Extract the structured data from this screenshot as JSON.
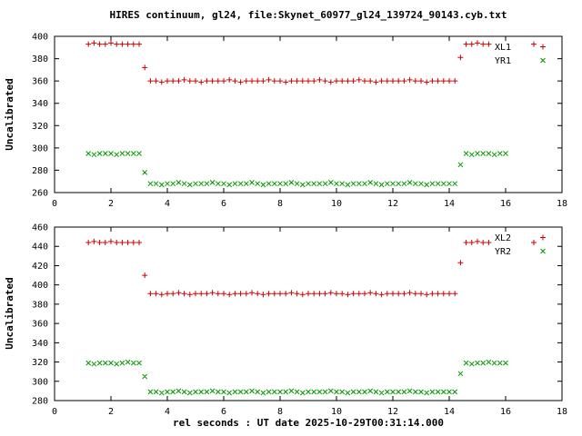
{
  "chart_data": [
    {
      "type": "scatter",
      "title": "HIRES continuum, gl24, file:Skynet_60977_gl24_139724_90143.cyb.txt",
      "ylabel": "Uncalibrated",
      "xlabel": "",
      "xlim": [
        0,
        18
      ],
      "ylim": [
        260,
        400
      ],
      "xticks": [
        0,
        2,
        4,
        6,
        8,
        10,
        12,
        14,
        16,
        18
      ],
      "yticks": [
        260,
        280,
        300,
        320,
        340,
        360,
        380,
        400
      ],
      "grid": false,
      "legend_position": "top-right",
      "series": [
        {
          "name": "XL1",
          "marker": "plus",
          "color": "#cc0000",
          "x": [
            1.2,
            1.4,
            1.6,
            1.8,
            2.0,
            2.2,
            2.4,
            2.6,
            2.8,
            3.0,
            3.2,
            3.4,
            3.6,
            3.8,
            4.0,
            4.2,
            4.4,
            4.6,
            4.8,
            5.0,
            5.2,
            5.4,
            5.6,
            5.8,
            6.0,
            6.2,
            6.4,
            6.6,
            6.8,
            7.0,
            7.2,
            7.4,
            7.6,
            7.8,
            8.0,
            8.2,
            8.4,
            8.6,
            8.8,
            9.0,
            9.2,
            9.4,
            9.6,
            9.8,
            10.0,
            10.2,
            10.4,
            10.6,
            10.8,
            11.0,
            11.2,
            11.4,
            11.6,
            11.8,
            12.0,
            12.2,
            12.4,
            12.6,
            12.8,
            13.0,
            13.2,
            13.4,
            13.6,
            13.8,
            14.0,
            14.2,
            14.4,
            14.6,
            14.8,
            15.0,
            15.2,
            15.4,
            17.0
          ],
          "y": [
            393,
            394,
            393,
            393,
            394,
            393,
            393,
            393,
            393,
            393,
            372,
            360,
            360,
            359,
            360,
            360,
            360,
            361,
            360,
            360,
            359,
            360,
            360,
            360,
            360,
            361,
            360,
            359,
            360,
            360,
            360,
            360,
            361,
            360,
            360,
            359,
            360,
            360,
            360,
            360,
            360,
            361,
            360,
            359,
            360,
            360,
            360,
            360,
            361,
            360,
            360,
            359,
            360,
            360,
            360,
            360,
            360,
            361,
            360,
            360,
            359,
            360,
            360,
            360,
            360,
            360,
            381,
            393,
            393,
            394,
            393,
            393,
            393
          ]
        },
        {
          "name": "YR1",
          "marker": "cross",
          "color": "#009900",
          "x": [
            1.2,
            1.4,
            1.6,
            1.8,
            2.0,
            2.2,
            2.4,
            2.6,
            2.8,
            3.0,
            3.2,
            3.4,
            3.6,
            3.8,
            4.0,
            4.2,
            4.4,
            4.6,
            4.8,
            5.0,
            5.2,
            5.4,
            5.6,
            5.8,
            6.0,
            6.2,
            6.4,
            6.6,
            6.8,
            7.0,
            7.2,
            7.4,
            7.6,
            7.8,
            8.0,
            8.2,
            8.4,
            8.6,
            8.8,
            9.0,
            9.2,
            9.4,
            9.6,
            9.8,
            10.0,
            10.2,
            10.4,
            10.6,
            10.8,
            11.0,
            11.2,
            11.4,
            11.6,
            11.8,
            12.0,
            12.2,
            12.4,
            12.6,
            12.8,
            13.0,
            13.2,
            13.4,
            13.6,
            13.8,
            14.0,
            14.2,
            14.4,
            14.6,
            14.8,
            15.0,
            15.2,
            15.4,
            15.6,
            15.8,
            16.0
          ],
          "y": [
            295,
            294,
            295,
            295,
            295,
            294,
            295,
            295,
            295,
            295,
            278,
            268,
            268,
            267,
            268,
            268,
            269,
            268,
            267,
            268,
            268,
            268,
            269,
            268,
            268,
            267,
            268,
            268,
            268,
            269,
            268,
            267,
            268,
            268,
            268,
            268,
            269,
            268,
            267,
            268,
            268,
            268,
            268,
            269,
            268,
            268,
            267,
            268,
            268,
            268,
            269,
            268,
            267,
            268,
            268,
            268,
            268,
            269,
            268,
            268,
            267,
            268,
            268,
            268,
            268,
            268,
            285,
            295,
            294,
            295,
            295,
            295,
            294,
            295,
            295
          ]
        }
      ]
    },
    {
      "type": "scatter",
      "title": "",
      "ylabel": "Uncalibrated",
      "xlabel": "rel seconds : UT date 2025-10-29T00:31:14.000",
      "xlim": [
        0,
        18
      ],
      "ylim": [
        280,
        460
      ],
      "xticks": [
        0,
        2,
        4,
        6,
        8,
        10,
        12,
        14,
        16,
        18
      ],
      "yticks": [
        280,
        300,
        320,
        340,
        360,
        380,
        400,
        420,
        440,
        460
      ],
      "grid": false,
      "legend_position": "top-right",
      "series": [
        {
          "name": "XL2",
          "marker": "plus",
          "color": "#cc0000",
          "x": [
            1.2,
            1.4,
            1.6,
            1.8,
            2.0,
            2.2,
            2.4,
            2.6,
            2.8,
            3.0,
            3.2,
            3.4,
            3.6,
            3.8,
            4.0,
            4.2,
            4.4,
            4.6,
            4.8,
            5.0,
            5.2,
            5.4,
            5.6,
            5.8,
            6.0,
            6.2,
            6.4,
            6.6,
            6.8,
            7.0,
            7.2,
            7.4,
            7.6,
            7.8,
            8.0,
            8.2,
            8.4,
            8.6,
            8.8,
            9.0,
            9.2,
            9.4,
            9.6,
            9.8,
            10.0,
            10.2,
            10.4,
            10.6,
            10.8,
            11.0,
            11.2,
            11.4,
            11.6,
            11.8,
            12.0,
            12.2,
            12.4,
            12.6,
            12.8,
            13.0,
            13.2,
            13.4,
            13.6,
            13.8,
            14.0,
            14.2,
            14.4,
            14.6,
            14.8,
            15.0,
            15.2,
            15.4,
            17.0
          ],
          "y": [
            444,
            445,
            444,
            444,
            445,
            444,
            444,
            444,
            444,
            444,
            410,
            391,
            391,
            390,
            391,
            391,
            392,
            391,
            390,
            391,
            391,
            391,
            392,
            391,
            391,
            390,
            391,
            391,
            391,
            392,
            391,
            390,
            391,
            391,
            391,
            391,
            392,
            391,
            390,
            391,
            391,
            391,
            391,
            392,
            391,
            391,
            390,
            391,
            391,
            391,
            392,
            391,
            390,
            391,
            391,
            391,
            391,
            392,
            391,
            391,
            390,
            391,
            391,
            391,
            391,
            391,
            423,
            444,
            444,
            445,
            444,
            444,
            444
          ]
        },
        {
          "name": "YR2",
          "marker": "cross",
          "color": "#009900",
          "x": [
            1.2,
            1.4,
            1.6,
            1.8,
            2.0,
            2.2,
            2.4,
            2.6,
            2.8,
            3.0,
            3.2,
            3.4,
            3.6,
            3.8,
            4.0,
            4.2,
            4.4,
            4.6,
            4.8,
            5.0,
            5.2,
            5.4,
            5.6,
            5.8,
            6.0,
            6.2,
            6.4,
            6.6,
            6.8,
            7.0,
            7.2,
            7.4,
            7.6,
            7.8,
            8.0,
            8.2,
            8.4,
            8.6,
            8.8,
            9.0,
            9.2,
            9.4,
            9.6,
            9.8,
            10.0,
            10.2,
            10.4,
            10.6,
            10.8,
            11.0,
            11.2,
            11.4,
            11.6,
            11.8,
            12.0,
            12.2,
            12.4,
            12.6,
            12.8,
            13.0,
            13.2,
            13.4,
            13.6,
            13.8,
            14.0,
            14.2,
            14.4,
            14.6,
            14.8,
            15.0,
            15.2,
            15.4,
            15.6,
            15.8,
            16.0
          ],
          "y": [
            319,
            318,
            319,
            319,
            319,
            318,
            319,
            320,
            319,
            319,
            305,
            289,
            289,
            288,
            289,
            289,
            290,
            289,
            288,
            289,
            289,
            289,
            290,
            289,
            289,
            288,
            289,
            289,
            289,
            290,
            289,
            288,
            289,
            289,
            289,
            289,
            290,
            289,
            288,
            289,
            289,
            289,
            289,
            290,
            289,
            289,
            288,
            289,
            289,
            289,
            290,
            289,
            288,
            289,
            289,
            289,
            289,
            290,
            289,
            289,
            288,
            289,
            289,
            289,
            289,
            289,
            308,
            319,
            318,
            319,
            319,
            320,
            319,
            319,
            319
          ]
        }
      ]
    }
  ],
  "colors": {
    "axis": "#000000",
    "series1": "#cc0000",
    "series2": "#009900",
    "background": "#ffffff"
  }
}
